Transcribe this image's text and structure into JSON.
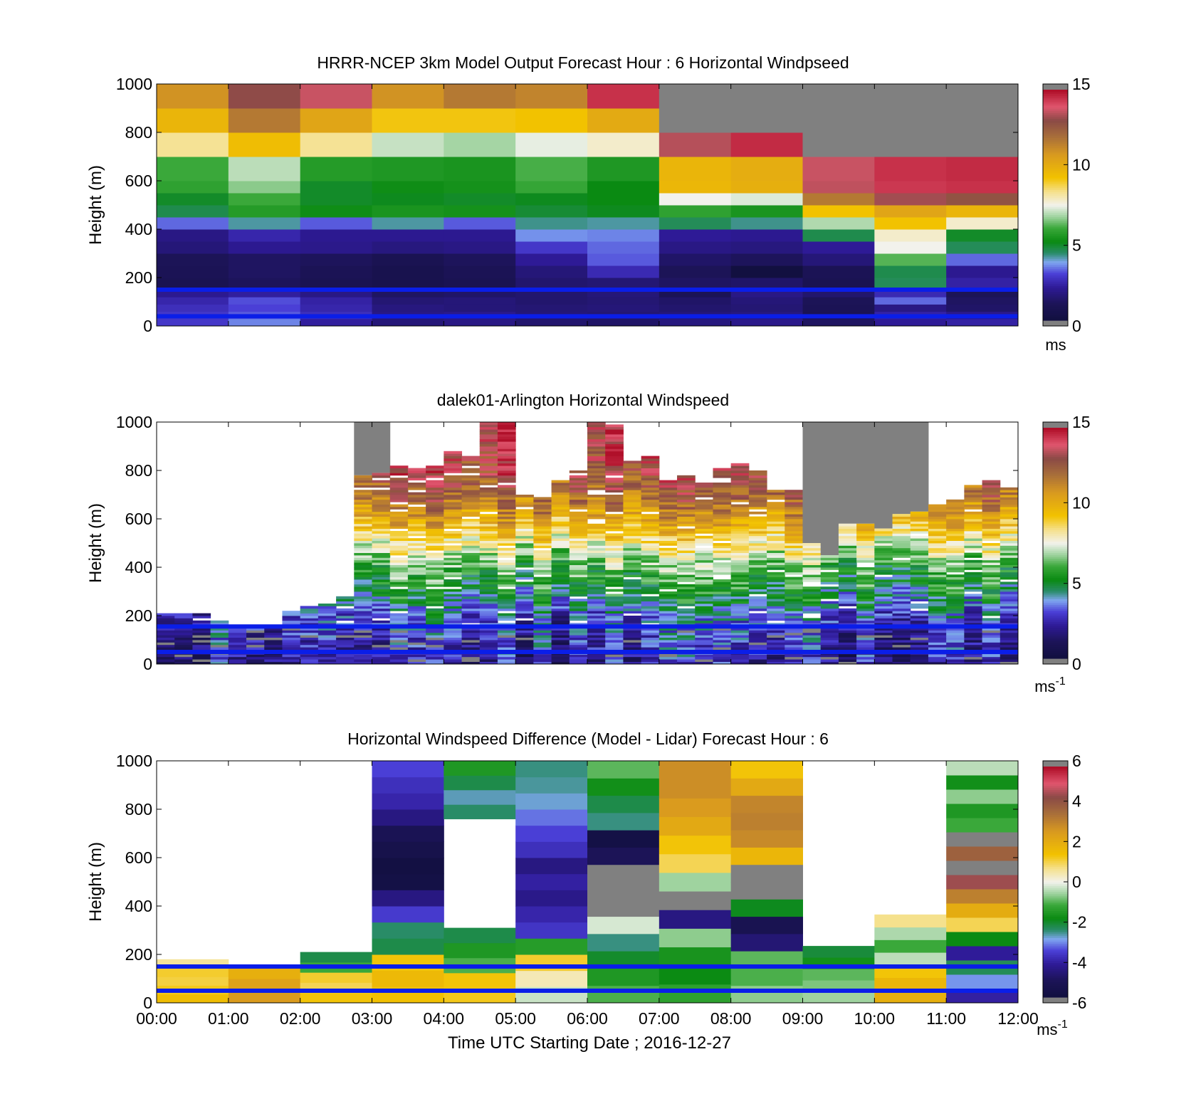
{
  "figure": {
    "xlabel": "Time UTC  Starting Date ; 2016-12-27",
    "x_ticks": [
      "00:00",
      "01:00",
      "02:00",
      "03:00",
      "04:00",
      "05:00",
      "06:00",
      "07:00",
      "08:00",
      "09:00",
      "10:00",
      "11:00",
      "12:00"
    ],
    "background": "#ffffff"
  },
  "chart_data": [
    {
      "type": "heatmap",
      "title": "HRRR-NCEP 3km Model Output   Forecast Hour : 6 Horizontal Windpseed",
      "ylabel": "Height (m)",
      "xlim": [
        0,
        12
      ],
      "ylim": [
        0,
        1000
      ],
      "y_ticks": [
        "0",
        "200",
        "400",
        "600",
        "800",
        "1000"
      ],
      "colorbar": {
        "min": 0,
        "max": 15,
        "ticks": [
          "0",
          "5",
          "10",
          "15"
        ],
        "unit": "ms",
        "unit_sup": ""
      },
      "overlay_lines_height_m": [
        40,
        150
      ],
      "overlay_line_color": "#0a1ee8",
      "time_bins_hours": [
        0,
        1,
        2,
        3,
        4,
        5,
        6,
        7,
        8,
        9,
        10,
        11,
        12
      ],
      "height_bins_m": [
        0,
        30,
        60,
        90,
        120,
        150,
        200,
        250,
        300,
        350,
        400,
        450,
        500,
        550,
        600,
        700,
        800,
        900,
        1000
      ],
      "values": [
        [
          2.8,
          3.5,
          2.2,
          1.6,
          1.8,
          1.4,
          1.3,
          1.7,
          1.9,
          1.2,
          2.1,
          2.3
        ],
        [
          2.8,
          3.2,
          2.6,
          1.8,
          1.9,
          1.6,
          1.5,
          1.6,
          1.7,
          0.9,
          2.3,
          1.9
        ],
        [
          2.6,
          3.0,
          2.4,
          1.7,
          1.6,
          1.5,
          1.6,
          1.4,
          1.5,
          0.9,
          1.8,
          1.3
        ],
        [
          2.4,
          3.1,
          2.3,
          1.5,
          1.6,
          1.4,
          1.5,
          1.3,
          1.6,
          1.0,
          3.3,
          1.2
        ],
        [
          2.0,
          2.2,
          1.8,
          1.2,
          1.3,
          1.4,
          1.6,
          0.9,
          1.8,
          1.4,
          2.5,
          1.0
        ],
        [
          0.8,
          1.1,
          0.8,
          0.6,
          0.8,
          1.4,
          1.5,
          1.2,
          1.3,
          0.8,
          4.5,
          2.3
        ],
        [
          0.9,
          1.2,
          0.9,
          0.6,
          0.9,
          1.6,
          2.5,
          1.0,
          0.0,
          0.9,
          4.6,
          2.0
        ],
        [
          1.0,
          1.2,
          1.1,
          0.8,
          1.1,
          2.1,
          3.2,
          1.3,
          1.1,
          1.6,
          6.2,
          3.3
        ],
        [
          1.6,
          2.0,
          1.9,
          1.7,
          1.8,
          2.8,
          3.3,
          1.8,
          1.7,
          2.1,
          7.5,
          4.5
        ],
        [
          1.8,
          2.4,
          2.0,
          2.0,
          2.0,
          3.6,
          3.5,
          2.1,
          2.0,
          4.6,
          7.8,
          4.9
        ],
        [
          3.3,
          4.1,
          3.2,
          4.1,
          3.2,
          4.2,
          4.1,
          4.5,
          4.2,
          6.9,
          9.3,
          7.8
        ],
        [
          4.6,
          5.6,
          5.2,
          5.4,
          5.3,
          4.8,
          5.0,
          5.8,
          5.4,
          9.3,
          10.4,
          9.8
        ],
        [
          4.9,
          6.0,
          4.9,
          5.0,
          4.9,
          5.0,
          5.1,
          7.5,
          7.3,
          11.7,
          13.3,
          12.8
        ],
        [
          5.8,
          6.6,
          4.9,
          5.2,
          5.3,
          5.9,
          5.1,
          9.7,
          10.0,
          13.6,
          14.4,
          14.5
        ],
        [
          6.0,
          7.0,
          5.6,
          5.5,
          5.4,
          6.1,
          5.5,
          9.8,
          10.1,
          13.7,
          14.5,
          14.6
        ],
        [
          8.3,
          9.5,
          8.3,
          7.1,
          6.8,
          7.4,
          7.8,
          13.5,
          14.6,
          null,
          null,
          null
        ],
        [
          9.8,
          11.7,
          10.4,
          9.2,
          9.2,
          9.3,
          10.2,
          null,
          null,
          null,
          null,
          null
        ],
        [
          11.0,
          13.1,
          13.7,
          11.0,
          11.7,
          11.4,
          14.5,
          null,
          null,
          null,
          null,
          null
        ]
      ]
    },
    {
      "type": "heatmap",
      "title": "dalek01-Arlington  Horizontal Windspeed",
      "ylabel": "Height (m)",
      "xlim": [
        0,
        12
      ],
      "ylim": [
        0,
        1000
      ],
      "y_ticks": [
        "0",
        "200",
        "400",
        "600",
        "800",
        "1000"
      ],
      "colorbar": {
        "min": 0,
        "max": 15,
        "ticks": [
          "0",
          "5",
          "10",
          "15"
        ],
        "unit": "ms",
        "unit_sup": "-1"
      },
      "overlay_lines_height_m": [
        50,
        155
      ],
      "overlay_line_color": "#0a1ee8",
      "columns_per_hour": 4,
      "column_top_heights_m": [
        210,
        210,
        210,
        180,
        160,
        160,
        170,
        220,
        250,
        250,
        280,
        1000,
        1000,
        820,
        810,
        830,
        880,
        860,
        1000,
        1000,
        700,
        690,
        760,
        800,
        1000,
        990,
        840,
        860,
        760,
        780,
        750,
        810,
        830,
        800,
        720,
        720,
        1000,
        1000,
        1000,
        1000,
        1000,
        1000,
        1000,
        660,
        680,
        740,
        760,
        730
      ],
      "valid_data_top_m": [
        210,
        210,
        210,
        180,
        160,
        160,
        170,
        220,
        250,
        250,
        280,
        780,
        790,
        820,
        810,
        830,
        880,
        860,
        1000,
        1000,
        700,
        690,
        760,
        800,
        1000,
        990,
        840,
        860,
        760,
        780,
        750,
        810,
        830,
        800,
        720,
        720,
        500,
        450,
        580,
        580,
        560,
        620,
        630,
        660,
        680,
        740,
        760,
        730
      ],
      "profile_speed_ms": [
        {
          "height_m": 0,
          "speed_ms": 2.0
        },
        {
          "height_m": 100,
          "speed_ms": 2.6
        },
        {
          "height_m": 200,
          "speed_ms": 3.2
        },
        {
          "height_m": 300,
          "speed_ms": 4.8
        },
        {
          "height_m": 400,
          "speed_ms": 6.0
        },
        {
          "height_m": 500,
          "speed_ms": 8.0
        },
        {
          "height_m": 600,
          "speed_ms": 10.2
        },
        {
          "height_m": 700,
          "speed_ms": 12.0
        },
        {
          "height_m": 800,
          "speed_ms": 13.2
        },
        {
          "height_m": 1000,
          "speed_ms": 14.0
        }
      ]
    },
    {
      "type": "heatmap",
      "title": "Horizontal Windspeed Difference (Model - Lidar) Forecast Hour : 6",
      "ylabel": "Height (m)",
      "xlim": [
        0,
        12
      ],
      "ylim": [
        0,
        1000
      ],
      "x_ticks_shown": true,
      "y_ticks": [
        "0",
        "200",
        "400",
        "600",
        "800",
        "1000"
      ],
      "colorbar": {
        "min": -6,
        "max": 6,
        "ticks": [
          "-6",
          "-4",
          "-2",
          "0",
          "2",
          "4",
          "6"
        ],
        "unit": "ms",
        "unit_sup": "-1"
      },
      "overlay_lines_height_m": [
        50,
        150
      ],
      "overlay_line_color": "#0a1ee8",
      "segments": [
        {
          "hour": 0,
          "from_m": 0,
          "to_m": 180,
          "values": [
            1.6,
            1.3,
            1.1,
            1.2,
            0.6
          ]
        },
        {
          "hour": 1,
          "from_m": 0,
          "to_m": 150,
          "values": [
            2.6,
            2.4,
            2.0
          ]
        },
        {
          "hour": 2,
          "from_m": 0,
          "to_m": 210,
          "values": [
            1.4,
            1.0,
            1.2,
            -1.2,
            -2.3
          ]
        },
        {
          "hour": 3,
          "from_m": 0,
          "to_m": 1000,
          "values": [
            1.5,
            1.7,
            1.4,
            -2.3,
            -2.5,
            -3.7,
            -4.6,
            -5.8,
            -5.9,
            -5.6,
            -5.3,
            -4.6,
            -4.1,
            -3.9,
            -3.6
          ]
        },
        {
          "hour": 4,
          "from_m": 0,
          "to_m": 310,
          "values": [
            1.3,
            1.4,
            -1.1,
            -1.6,
            -2.3
          ]
        },
        {
          "hour": 4,
          "from_m": 760,
          "to_m": 1000,
          "values": [
            -2.5,
            -2.8,
            -2.3,
            -1.6
          ]
        },
        {
          "hour": 5,
          "from_m": 0,
          "to_m": 1000,
          "values": [
            -0.3,
            0.4,
            1.2,
            -1.5,
            -3.8,
            -4.1,
            -4.5,
            -4.2,
            -4.6,
            -3.9,
            -3.6,
            -3.3,
            -2.9,
            -2.7,
            -2.6
          ]
        },
        {
          "hour": 6,
          "from_m": 0,
          "to_m": 1000,
          "values": [
            -1.1,
            -1.6,
            -2.1,
            -2.6,
            -0.2,
            null,
            null,
            null,
            -5.2,
            -5.8,
            -2.6,
            -2.3,
            -1.8,
            -1.0
          ]
        },
        {
          "hour": 7,
          "from_m": 0,
          "to_m": 1000,
          "values": [
            -1.4,
            -1.9,
            -1.7,
            -0.7,
            -4.6,
            null,
            -0.6,
            1.0,
            1.4,
            2.2,
            2.6,
            2.9,
            2.9
          ]
        },
        {
          "hour": 8,
          "from_m": 0,
          "to_m": 1000,
          "values": [
            -0.7,
            -1.1,
            -1.0,
            -4.8,
            -5.4,
            -2.0,
            null,
            null,
            1.8,
            3.0,
            3.2,
            3.1,
            2.2,
            1.4
          ]
        },
        {
          "hour": 9,
          "from_m": 0,
          "to_m": 235,
          "values": [
            -0.6,
            -0.8,
            -1.0,
            -1.8,
            -2.2
          ]
        },
        {
          "hour": 10,
          "from_m": 0,
          "to_m": 365,
          "values": [
            2.0,
            1.8,
            1.4,
            -0.4,
            -1.2,
            -0.5,
            0.7
          ]
        },
        {
          "hour": 11,
          "from_m": 0,
          "to_m": 1000,
          "values": [
            -4.2,
            -3.1,
            -2.4,
            -4.3,
            -1.9,
            1.0,
            2.1,
            3.2,
            4.6,
            null,
            3.9,
            null,
            -1.2,
            -1.6,
            -0.7,
            -1.8,
            -0.4
          ]
        }
      ]
    }
  ]
}
